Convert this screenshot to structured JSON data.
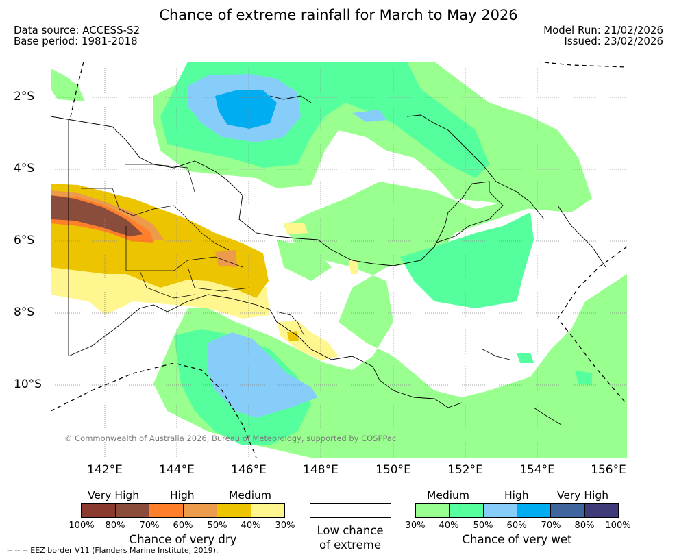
{
  "title": "Chance of extreme rainfall for March to May 2026",
  "meta": {
    "data_source": "Data source: ACCESS-S2",
    "base_period": "Base period: 1981-2018",
    "model_run": "Model Run: 21/02/2026",
    "issued": "Issued: 23/02/2026"
  },
  "map": {
    "lat_labels": [
      "2°S",
      "4°S",
      "6°S",
      "8°S",
      "10°S"
    ],
    "lon_labels": [
      "142°E",
      "144°E",
      "146°E",
      "148°E",
      "150°E",
      "152°E",
      "154°E",
      "156°E"
    ],
    "copyright": "© Commonwealth of Australia 2026, Bureau of Meteorology, supported by COSPPac"
  },
  "legend_dry": {
    "categories": [
      "Very High",
      "High",
      "Medium"
    ],
    "ticks": [
      "100%",
      "80%",
      "70%",
      "60%",
      "50%",
      "40%",
      "30%"
    ],
    "colors": [
      "#8b3a2f",
      "#8a4c3b",
      "#ff7f2a",
      "#ec9a4c",
      "#ecc400",
      "#fff68f"
    ],
    "title": "Chance of very dry"
  },
  "legend_neutral": {
    "line1": "Low chance",
    "line2": "of extreme"
  },
  "legend_wet": {
    "categories": [
      "Medium",
      "High",
      "Very High"
    ],
    "ticks": [
      "30%",
      "40%",
      "50%",
      "60%",
      "70%",
      "80%",
      "100%"
    ],
    "colors": [
      "#99ff8f",
      "#55ff9e",
      "#87cdfa",
      "#00adf0",
      "#3f659e",
      "#3f3a78"
    ],
    "title": "Chance of very wet"
  },
  "eez_note": "--  --  -- EEZ border V11 (Flanders Marine Institute, 2019)."
}
